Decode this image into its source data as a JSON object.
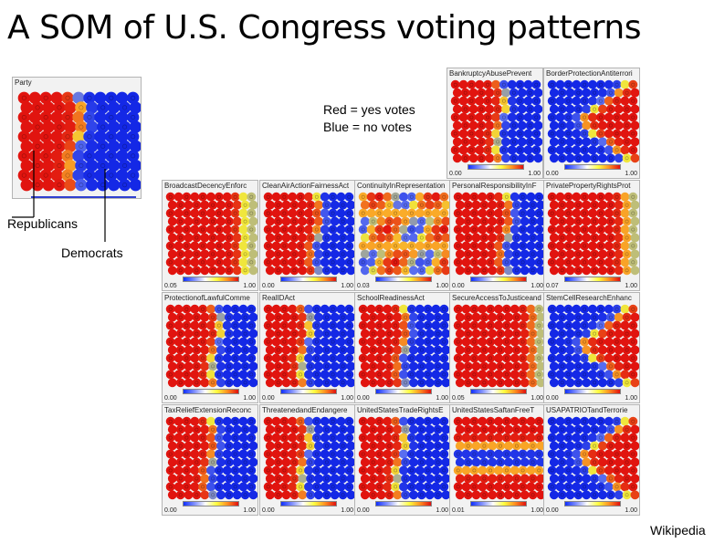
{
  "slide": {
    "title": "A SOM of U.S. Congress voting patterns",
    "note_line1": "Red = yes votes",
    "note_line2": "Blue = no votes",
    "label_republicans": "Republicans",
    "label_democrats": "Democrats",
    "credit": "Wikipedia"
  },
  "colors": {
    "red": "#e01010",
    "blue": "#1a2ee0",
    "yellow": "#f2e020"
  },
  "party_panel": {
    "title": "Party"
  },
  "panels": [
    {
      "title": "BankruptcyAbusePrevent",
      "min": "0.00",
      "max": "1.00",
      "pattern": "split",
      "boundary": 0.55
    },
    {
      "title": "BorderProtectionAntiterrori",
      "min": "0.00",
      "max": "1.00",
      "pattern": "wedge",
      "boundary": 0.5
    },
    {
      "title": "BroadcastDecencyEnforc",
      "min": "0.05",
      "max": "1.00",
      "pattern": "mostlyred",
      "boundary": 0.9
    },
    {
      "title": "CleanAirActionFairnessAct",
      "min": "0.00",
      "max": "1.00",
      "pattern": "split",
      "boundary": 0.6
    },
    {
      "title": "ContinuityInRepresentation",
      "min": "0.03",
      "max": "1.00",
      "pattern": "mixed",
      "boundary": 0.7
    },
    {
      "title": "PersonalResponsibilityInF",
      "min": "0.00",
      "max": "1.00",
      "pattern": "split",
      "boundary": 0.6
    },
    {
      "title": "PrivatePropertyRightsProt",
      "min": "0.07",
      "max": "1.00",
      "pattern": "mostlyred",
      "boundary": 0.92
    },
    {
      "title": "ProtectionofLawfulComme",
      "min": "0.00",
      "max": "1.00",
      "pattern": "split",
      "boundary": 0.55
    },
    {
      "title": "RealIDAct",
      "min": "0.00",
      "max": "1.00",
      "pattern": "split",
      "boundary": 0.45
    },
    {
      "title": "SchoolReadinessAct",
      "min": "0.00",
      "max": "1.00",
      "pattern": "split",
      "boundary": 0.5
    },
    {
      "title": "SecureAccessToJusticeand",
      "min": "0.05",
      "max": "1.00",
      "pattern": "mostlyred",
      "boundary": 0.95
    },
    {
      "title": "StemCellResearchEnhanc",
      "min": "0.00",
      "max": "1.00",
      "pattern": "wedge",
      "boundary": 0.5
    },
    {
      "title": "TaxReliefExtensionReconc",
      "min": "0.00",
      "max": "1.00",
      "pattern": "split",
      "boundary": 0.5
    },
    {
      "title": "ThreatenedandEndangere",
      "min": "0.00",
      "max": "1.00",
      "pattern": "split",
      "boundary": 0.45
    },
    {
      "title": "UnitedStatesTradeRightsE",
      "min": "0.00",
      "max": "1.00",
      "pattern": "split",
      "boundary": 0.45
    },
    {
      "title": "UnitedStatesSaftanFreeT",
      "min": "0.01",
      "max": "1.00",
      "pattern": "band",
      "boundary": 0.5
    },
    {
      "title": "USAPATRIOTandTerrorie",
      "min": "0.00",
      "max": "1.00",
      "pattern": "wedge",
      "boundary": 0.5
    }
  ]
}
